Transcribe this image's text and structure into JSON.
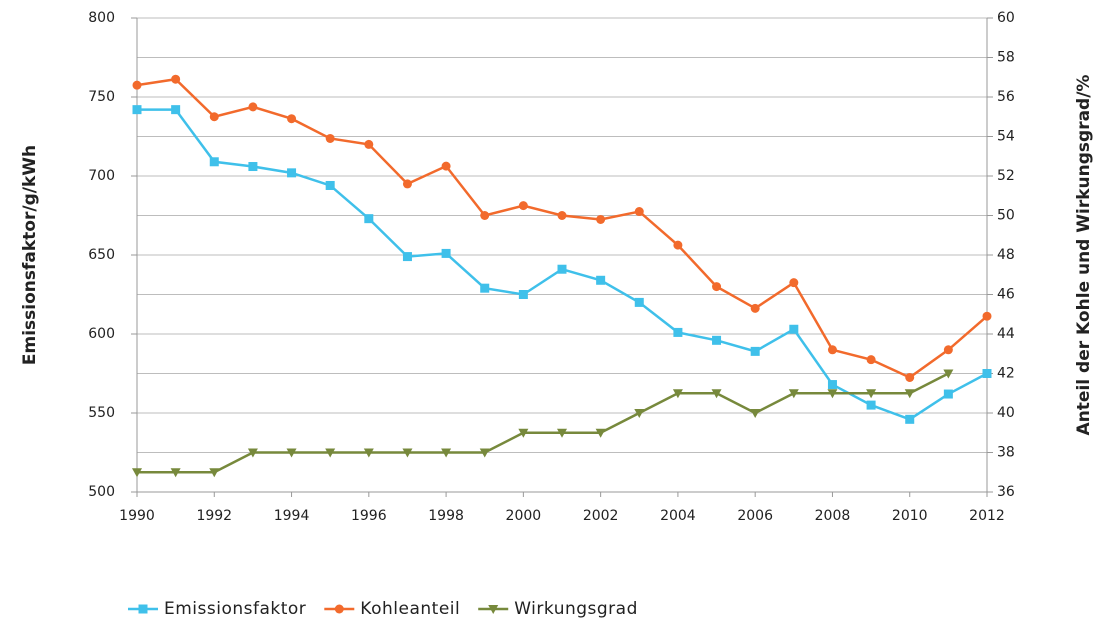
{
  "chart_data": {
    "type": "line",
    "y_label": "Emissionsfaktor/g/kWh",
    "y2_label": "Anteil der Kohle und Wirkungsgrad/%",
    "x": [
      1990,
      1991,
      1992,
      1993,
      1994,
      1995,
      1996,
      1997,
      1998,
      1999,
      2000,
      2001,
      2002,
      2003,
      2004,
      2005,
      2006,
      2007,
      2008,
      2009,
      2010,
      2011,
      2012
    ],
    "xlim": [
      1990,
      2012
    ],
    "xticks": [
      1990,
      1992,
      1994,
      1996,
      1998,
      2000,
      2002,
      2004,
      2006,
      2008,
      2010,
      2012
    ],
    "ylim": [
      500,
      800
    ],
    "yticks": [
      500,
      550,
      600,
      650,
      700,
      750,
      800
    ],
    "y2lim": [
      36,
      60
    ],
    "y2ticks": [
      36,
      38,
      40,
      42,
      44,
      46,
      48,
      50,
      52,
      54,
      56,
      58,
      60
    ],
    "grid": true,
    "legend": "bottom",
    "series": [
      {
        "name": "Emissionsfaktor",
        "color": "#3fc0ea",
        "marker": "square",
        "values": [
          742,
          742,
          709,
          706,
          702,
          694,
          673,
          649,
          651,
          629,
          625,
          641,
          634,
          620,
          601,
          596,
          589,
          603,
          568,
          555,
          546,
          562,
          575
        ]
      },
      {
        "name": "Kohleanteil",
        "color": "#f26a2c",
        "marker": "circle",
        "axis": "y2",
        "values": [
          56.6,
          56.9,
          55.0,
          55.5,
          54.9,
          53.9,
          53.6,
          51.6,
          52.5,
          50.0,
          50.5,
          50.0,
          49.8,
          50.2,
          48.5,
          46.4,
          45.3,
          46.6,
          43.2,
          42.7,
          41.8,
          43.2,
          44.9
        ]
      },
      {
        "name": "Wirkungsgrad",
        "color": "#77893c",
        "marker": "triangle-down",
        "axis": "y2",
        "values": [
          37,
          37,
          37,
          38,
          38,
          38,
          38,
          38,
          38,
          38,
          39,
          39,
          39,
          40,
          41,
          41,
          40,
          41,
          41,
          41,
          41,
          42,
          null
        ]
      }
    ]
  }
}
